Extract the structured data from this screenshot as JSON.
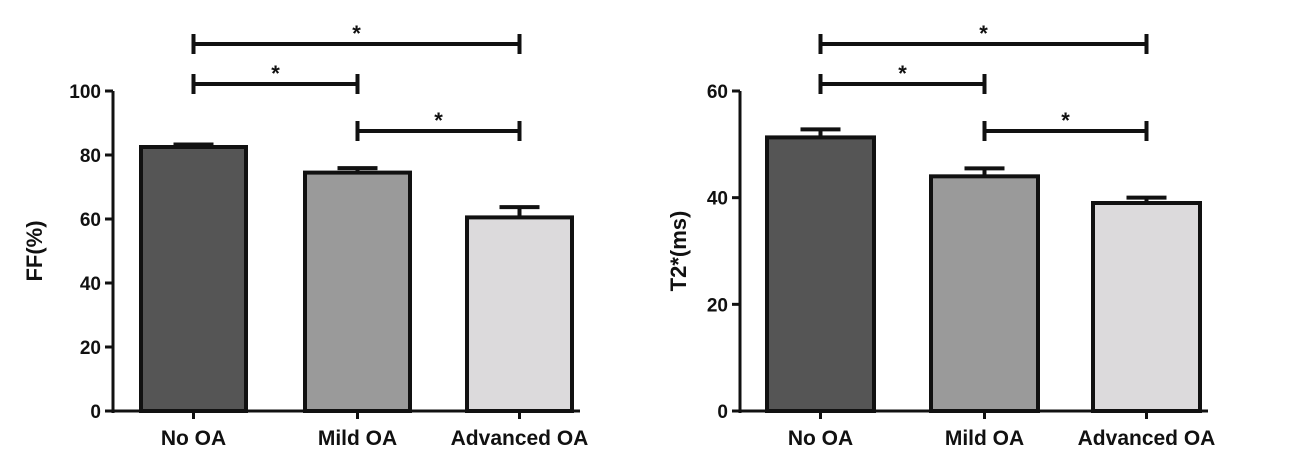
{
  "chart_data": [
    {
      "type": "bar",
      "categories": [
        "No OA",
        "Mild OA",
        "Advanced OA"
      ],
      "values": [
        82.5,
        74.5,
        60.5
      ],
      "errors": [
        0.8,
        1.4,
        3.2
      ],
      "colors": [
        "#555555",
        "#9a9a9a",
        "#dcdadc"
      ],
      "ylabel": "FF(%)",
      "ylim": [
        0,
        100
      ],
      "yticks": [
        "0",
        "20",
        "40",
        "60",
        "80",
        "100"
      ],
      "significance": [
        {
          "from": 0,
          "to": 1,
          "label": "*"
        },
        {
          "from": 1,
          "to": 2,
          "label": "*"
        },
        {
          "from": 0,
          "to": 2,
          "label": "*"
        }
      ]
    },
    {
      "type": "bar",
      "categories": [
        "No OA",
        "Mild OA",
        "Advanced OA"
      ],
      "values": [
        51.3,
        44,
        39
      ],
      "errors": [
        1.5,
        1.5,
        1
      ],
      "colors": [
        "#555555",
        "#9a9a9a",
        "#dcdadc"
      ],
      "ylabel": "T2*(ms)",
      "ylim": [
        0,
        60
      ],
      "yticks": [
        "0",
        "20",
        "40",
        "60"
      ],
      "significance": [
        {
          "from": 0,
          "to": 1,
          "label": "*"
        },
        {
          "from": 1,
          "to": 2,
          "label": "*"
        },
        {
          "from": 0,
          "to": 2,
          "label": "*"
        }
      ]
    }
  ]
}
